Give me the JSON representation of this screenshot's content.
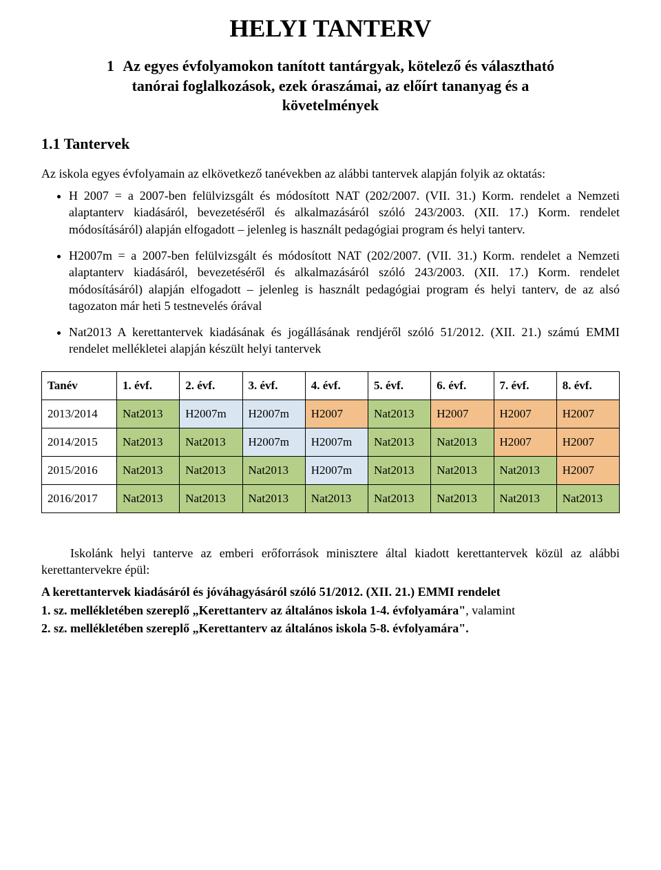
{
  "colors": {
    "nat2013": "#b5cf89",
    "h2007m": "#d9e6f2",
    "h2007": "#f3c08b",
    "plain": "#ffffff",
    "border": "#000000",
    "text": "#000000",
    "background": "#ffffff"
  },
  "doc": {
    "title": "HELYI TANTERV",
    "section_number": "1",
    "section_title": "Az egyes évfolyamokon tanított tantárgyak, kötelező és választható tanórai foglalkozások, ezek óraszámai, az előírt tananyag és a követelmények",
    "subsection_title": "1.1  Tantervek",
    "intro_para": "Az iskola egyes évfolyamain az elkövetkező tanévekben az alábbi tantervek alapján folyik az oktatás:",
    "bullets": [
      "H 2007 = a 2007-ben felülvizsgált és módosított NAT (202/2007. (VII. 31.) Korm. rendelet a Nemzeti alaptanterv kiadásáról, bevezetéséről és alkalmazásáról szóló 243/2003. (XII. 17.) Korm. rendelet módosításáról) alapján elfogadott – jelenleg is használt pedagógiai program és helyi tanterv.",
      "H2007m = a 2007-ben felülvizsgált és módosított NAT (202/2007. (VII. 31.) Korm. rendelet a Nemzeti alaptanterv kiadásáról, bevezetéséről és alkalmazásáról szóló 243/2003. (XII. 17.) Korm. rendelet módosításáról) alapján elfogadott – jelenleg is használt pedagógiai program és helyi tanterv, de az alsó tagozaton már heti 5 testnevelés órával",
      "Nat2013 A kerettantervek kiadásának és jogállásának rendjéről szóló 51/2012. (XII. 21.) számú EMMI rendelet mellékletei alapján készült helyi tantervek"
    ],
    "table": {
      "header": [
        "Tanév",
        "1. évf.",
        "2. évf.",
        "3. évf.",
        "4. évf.",
        "5. évf.",
        "6. évf.",
        "7. évf.",
        "8. évf."
      ],
      "rows": [
        {
          "year": "2013/2014",
          "cells": [
            {
              "val": "Nat2013",
              "bg": "nat2013"
            },
            {
              "val": "H2007m",
              "bg": "h2007m"
            },
            {
              "val": "H2007m",
              "bg": "h2007m"
            },
            {
              "val": "H2007",
              "bg": "h2007"
            },
            {
              "val": "Nat2013",
              "bg": "nat2013"
            },
            {
              "val": "H2007",
              "bg": "h2007"
            },
            {
              "val": "H2007",
              "bg": "h2007"
            },
            {
              "val": "H2007",
              "bg": "h2007"
            }
          ]
        },
        {
          "year": "2014/2015",
          "cells": [
            {
              "val": "Nat2013",
              "bg": "nat2013"
            },
            {
              "val": "Nat2013",
              "bg": "nat2013"
            },
            {
              "val": "H2007m",
              "bg": "h2007m"
            },
            {
              "val": "H2007m",
              "bg": "h2007m"
            },
            {
              "val": "Nat2013",
              "bg": "nat2013"
            },
            {
              "val": "Nat2013",
              "bg": "nat2013"
            },
            {
              "val": "H2007",
              "bg": "h2007"
            },
            {
              "val": "H2007",
              "bg": "h2007"
            }
          ]
        },
        {
          "year": "2015/2016",
          "cells": [
            {
              "val": "Nat2013",
              "bg": "nat2013"
            },
            {
              "val": "Nat2013",
              "bg": "nat2013"
            },
            {
              "val": "Nat2013",
              "bg": "nat2013"
            },
            {
              "val": "H2007m",
              "bg": "h2007m"
            },
            {
              "val": "Nat2013",
              "bg": "nat2013"
            },
            {
              "val": "Nat2013",
              "bg": "nat2013"
            },
            {
              "val": "Nat2013",
              "bg": "nat2013"
            },
            {
              "val": "H2007",
              "bg": "h2007"
            }
          ]
        },
        {
          "year": "2016/2017",
          "cells": [
            {
              "val": "Nat2013",
              "bg": "nat2013"
            },
            {
              "val": "Nat2013",
              "bg": "nat2013"
            },
            {
              "val": "Nat2013",
              "bg": "nat2013"
            },
            {
              "val": "Nat2013",
              "bg": "nat2013"
            },
            {
              "val": "Nat2013",
              "bg": "nat2013"
            },
            {
              "val": "Nat2013",
              "bg": "nat2013"
            },
            {
              "val": "Nat2013",
              "bg": "nat2013"
            },
            {
              "val": "Nat2013",
              "bg": "nat2013"
            }
          ]
        }
      ]
    },
    "after_table_para": "Iskolánk helyi tanterve az emberi erőforrások minisztere által kiadott kerettantervek közül az alábbi kerettantervekre épül:",
    "ref_heading": "A kerettantervek kiadásáról és jóváhagyásáról szóló 51/2012. (XII. 21.) EMMI rendelet",
    "ref_line1_bold": "1. sz. mellékletében szereplő „Kerettanterv az általános iskola 1-4. évfolyamára\"",
    "ref_line1_tail": ", valamint",
    "ref_line2_bold": "2. sz. mellékletében szereplő „Kerettanterv az általános iskola 5-8. évfolyamára\"."
  }
}
